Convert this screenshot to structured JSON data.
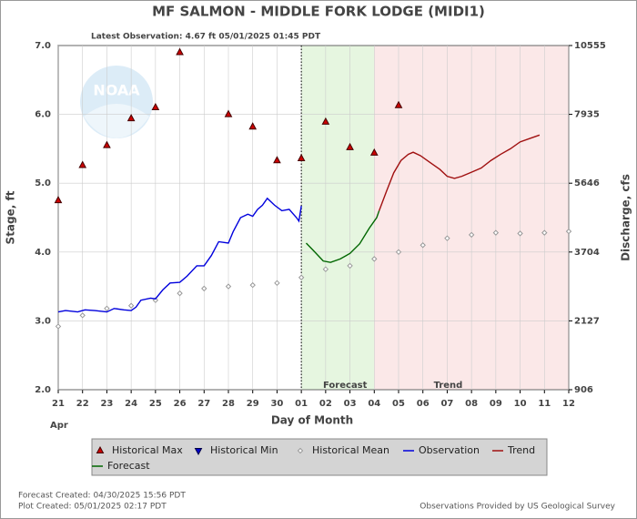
{
  "chart_data": {
    "type": "hydrograph",
    "title": "MF SALMON - MIDDLE FORK LODGE  (MIDI1)",
    "subtitle": "Latest Observation: 4.67 ft 05/01/2025 01:45 PDT",
    "logo_text": "NOAA",
    "xlabel": "Day of Month",
    "ylabel": "Stage, ft",
    "y2label": "Discharge, cfs",
    "month_label": "Apr",
    "xlim": [
      0,
      21
    ],
    "xticks": [
      {
        "value": 0,
        "label": "21"
      },
      {
        "value": 1,
        "label": "22"
      },
      {
        "value": 2,
        "label": "23"
      },
      {
        "value": 3,
        "label": "24"
      },
      {
        "value": 4,
        "label": "25"
      },
      {
        "value": 5,
        "label": "26"
      },
      {
        "value": 6,
        "label": "27"
      },
      {
        "value": 7,
        "label": "28"
      },
      {
        "value": 8,
        "label": "29"
      },
      {
        "value": 9,
        "label": "30"
      },
      {
        "value": 10,
        "label": "01"
      },
      {
        "value": 11,
        "label": "02"
      },
      {
        "value": 12,
        "label": "03"
      },
      {
        "value": 13,
        "label": "04"
      },
      {
        "value": 14,
        "label": "05"
      },
      {
        "value": 15,
        "label": "06"
      },
      {
        "value": 16,
        "label": "07"
      },
      {
        "value": 17,
        "label": "08"
      },
      {
        "value": 18,
        "label": "09"
      },
      {
        "value": 19,
        "label": "10"
      },
      {
        "value": 20,
        "label": "11"
      },
      {
        "value": 21,
        "label": "12"
      }
    ],
    "ylim": [
      2,
      7
    ],
    "yticks": [
      {
        "value": 2,
        "label": "2.0"
      },
      {
        "value": 3,
        "label": "3.0"
      },
      {
        "value": 4,
        "label": "4.0"
      },
      {
        "value": 5,
        "label": "5.0"
      },
      {
        "value": 6,
        "label": "6.0"
      },
      {
        "value": 7,
        "label": "7.0"
      }
    ],
    "y2ticks": [
      906,
      2127,
      3704,
      5646,
      7935,
      10555
    ],
    "grid": true,
    "observation_line_x": 10,
    "regions": [
      {
        "label": "Forecast",
        "x": [
          10,
          13
        ],
        "color": "#e6f6e0"
      },
      {
        "label": "Trend",
        "x": [
          13,
          21
        ],
        "color": "#fbe8e8"
      }
    ],
    "series": [
      {
        "name": "Historical Max",
        "color": "#cc0000",
        "marker": "triangle-up",
        "x": [
          0,
          1,
          2,
          3,
          4,
          5,
          6,
          7,
          8,
          9,
          10,
          11,
          12,
          13,
          14
        ],
        "values": [
          4.75,
          5.26,
          5.55,
          5.94,
          6.1,
          6.9,
          null,
          6.0,
          5.82,
          5.33,
          5.36,
          5.89,
          5.52,
          5.44,
          6.13
        ]
      },
      {
        "name": "Historical Min",
        "color": "#0000cc",
        "marker": "triangle-down"
      },
      {
        "name": "Historical Mean",
        "color": "#999999",
        "marker": "diamond",
        "x": [
          0,
          1,
          2,
          3,
          4,
          5,
          6,
          7,
          8,
          9,
          10,
          11,
          12,
          13,
          14,
          15,
          16,
          17,
          18,
          19,
          20,
          21
        ],
        "values": [
          2.92,
          3.08,
          3.18,
          3.22,
          3.3,
          3.4,
          3.47,
          3.5,
          3.52,
          3.55,
          3.63,
          3.75,
          3.8,
          3.9,
          4.0,
          4.1,
          4.2,
          4.25,
          4.28,
          4.27,
          4.28,
          4.3
        ]
      },
      {
        "name": "Observation",
        "color": "#0000dd",
        "marker": "line",
        "x": [
          0,
          0.3,
          0.8,
          1.1,
          1.5,
          2,
          2.3,
          2.7,
          3,
          3.2,
          3.4,
          3.8,
          4,
          4.3,
          4.6,
          5,
          5.3,
          5.7,
          6,
          6.3,
          6.6,
          7,
          7.2,
          7.5,
          7.8,
          8,
          8.2,
          8.4,
          8.6,
          8.9,
          9.2,
          9.5,
          9.8,
          9.9,
          10
        ],
        "values": [
          3.13,
          3.15,
          3.13,
          3.16,
          3.15,
          3.13,
          3.18,
          3.16,
          3.15,
          3.2,
          3.3,
          3.33,
          3.32,
          3.45,
          3.55,
          3.56,
          3.65,
          3.8,
          3.8,
          3.95,
          4.15,
          4.13,
          4.3,
          4.5,
          4.55,
          4.52,
          4.62,
          4.68,
          4.78,
          4.68,
          4.6,
          4.62,
          4.5,
          4.45,
          4.67
        ]
      },
      {
        "name": "Trend",
        "color": "#a01010",
        "marker": "line",
        "x": [
          13.2,
          13.5,
          13.8,
          14.1,
          14.4,
          14.6,
          14.9,
          15.3,
          15.7,
          16,
          16.3,
          16.6,
          17,
          17.4,
          17.8,
          18.2,
          18.6,
          19,
          19.4,
          19.8
        ],
        "values": [
          4.6,
          4.88,
          5.15,
          5.33,
          5.42,
          5.45,
          5.4,
          5.3,
          5.2,
          5.1,
          5.07,
          5.1,
          5.16,
          5.22,
          5.33,
          5.42,
          5.5,
          5.6,
          5.65,
          5.7
        ]
      },
      {
        "name": "Forecast",
        "color": "#006600",
        "marker": "line",
        "x": [
          10.2,
          10.5,
          10.9,
          11.2,
          11.6,
          12,
          12.4,
          12.8,
          13.1,
          13.2
        ],
        "values": [
          4.13,
          4.02,
          3.87,
          3.85,
          3.9,
          3.98,
          4.12,
          4.35,
          4.5,
          4.6
        ]
      }
    ],
    "footer_left": [
      "Forecast Created: 04/30/2025 15:56 PDT",
      "Plot Created: 05/01/2025 02:17 PDT"
    ],
    "footer_right": "Observations Provided by US Geological Survey"
  }
}
